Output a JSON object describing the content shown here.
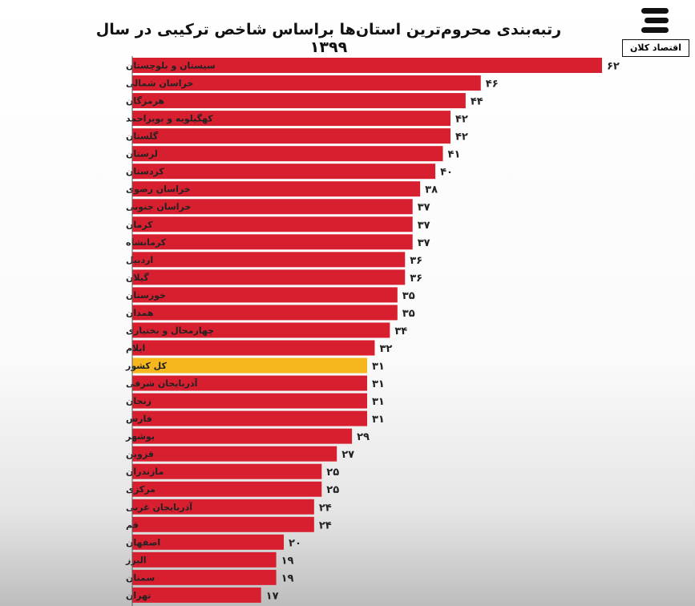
{
  "chart_data": {
    "type": "bar",
    "orientation": "horizontal",
    "title": "رتبه‌بندی محروم‌ترین استان‌ها براساس شاخص ترکیبی در سال ۱۳۹۹",
    "categories": [
      "سیستان و بلوچستان",
      "خراسان شمالی",
      "هرمزگان",
      "کهگیلویه و بویراحمد",
      "گلستان",
      "لرستان",
      "کردستان",
      "خراسان رضوی",
      "خراسان جنوبی",
      "کرمان",
      "کرمانشاه",
      "اردبیل",
      "گیلان",
      "خوزستان",
      "همدان",
      "چهارمحال و بختیاری",
      "ایلام",
      "کل کشور",
      "آذربایجان شرقی",
      "زنجان",
      "فارس",
      "بوشهر",
      "قزوین",
      "مازندران",
      "مرکزی",
      "آذربایجان غربی",
      "قم",
      "اصفهان",
      "البرز",
      "سمنان",
      "تهران"
    ],
    "values": [
      62,
      46,
      44,
      42,
      42,
      41,
      40,
      38,
      37,
      37,
      37,
      36,
      36,
      35,
      35,
      34,
      32,
      31,
      31,
      31,
      31,
      29,
      27,
      25,
      25,
      24,
      24,
      20,
      19,
      19,
      17
    ],
    "value_labels": [
      "۶۲",
      "۴۶",
      "۴۴",
      "۴۲",
      "۴۲",
      "۴۱",
      "۴۰",
      "۳۸",
      "۳۷",
      "۳۷",
      "۳۷",
      "۳۶",
      "۳۶",
      "۳۵",
      "۳۵",
      "۳۴",
      "۳۲",
      "۳۱",
      "۳۱",
      "۳۱",
      "۳۱",
      "۲۹",
      "۲۷",
      "۲۵",
      "۲۵",
      "۲۴",
      "۲۴",
      "۲۰",
      "۱۹",
      "۱۹",
      "۱۷"
    ],
    "highlight_category": "کل کشور",
    "colors": {
      "bar": "#d81f2f",
      "highlight": "#f5b61e"
    },
    "xlim": [
      0,
      62
    ],
    "grid": false,
    "legend": "none"
  },
  "logo": {
    "text": "اقتصاد کلان",
    "icon": "striped-logo-icon"
  }
}
